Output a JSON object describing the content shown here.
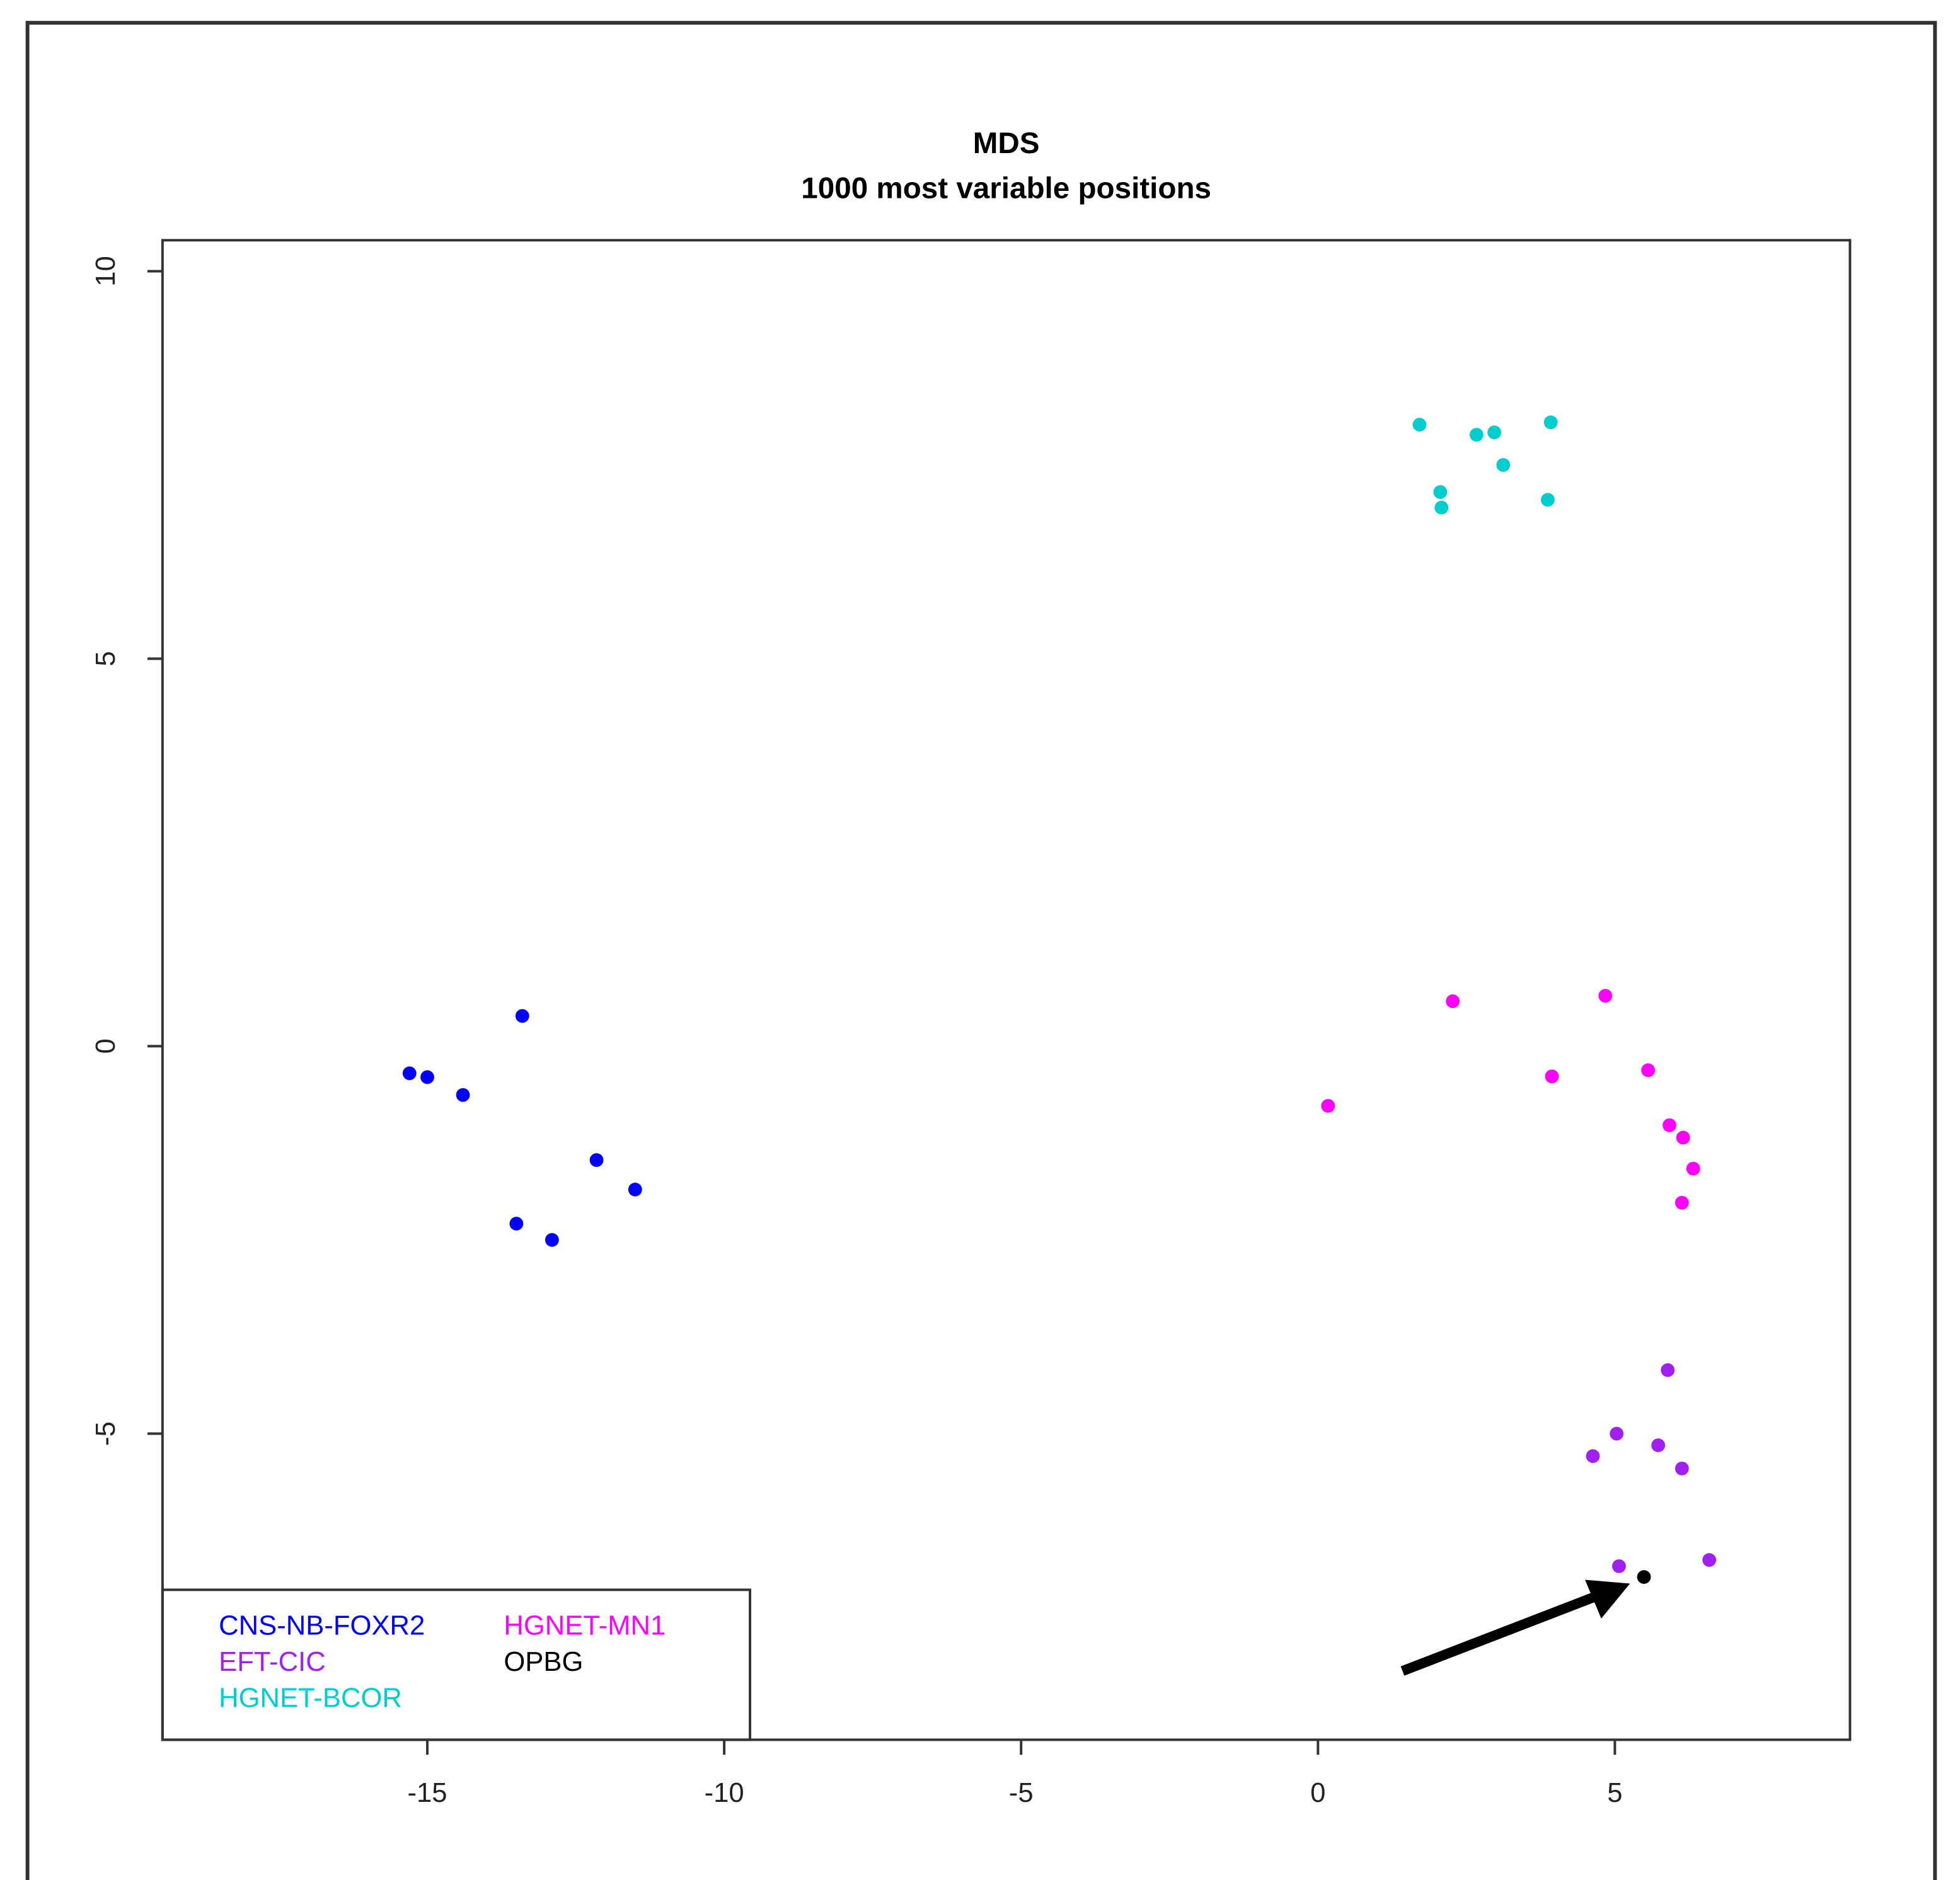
{
  "chart_data": {
    "type": "scatter",
    "title": "MDS",
    "subtitle": "1000 most variable positions",
    "xlim": [
      -19.46,
      8.96
    ],
    "ylim": [
      -8.95,
      10.4
    ],
    "xticks": [
      -15,
      -10,
      -5,
      0,
      5
    ],
    "yticks": [
      -5,
      0,
      5,
      10
    ],
    "legend": "bottomleft",
    "series": [
      {
        "name": "CNS-NB-FOXR2",
        "color": "#0000ff",
        "x": [
          -15.3,
          -15.0,
          -14.4,
          -13.4,
          -12.15,
          -11.5,
          -13.5,
          -12.9
        ],
        "values": [
          -0.35,
          -0.4,
          -0.63,
          0.39,
          -1.47,
          -1.85,
          -2.29,
          -2.5
        ]
      },
      {
        "name": "EFT-CIC",
        "color": "#a020f0",
        "x": [
          5.89,
          5.03,
          4.63,
          5.73,
          6.13,
          5.07,
          6.59
        ],
        "values": [
          -4.18,
          -5.0,
          -5.29,
          -5.15,
          -5.45,
          -6.71,
          -6.63
        ]
      },
      {
        "name": "HGNET-BCOR",
        "color": "#00cdcd",
        "x": [
          1.71,
          2.06,
          2.08,
          2.67,
          2.97,
          3.12,
          3.92,
          3.87
        ],
        "values": [
          8.02,
          7.15,
          6.95,
          7.89,
          7.92,
          7.5,
          8.05,
          7.05
        ]
      },
      {
        "name": "HGNET-MN1",
        "color": "#ff00ff",
        "x": [
          0.17,
          2.27,
          4.84,
          3.94,
          5.56,
          5.92,
          6.15,
          6.32,
          6.13
        ],
        "values": [
          -0.77,
          0.58,
          0.65,
          -0.39,
          -0.31,
          -1.02,
          -1.18,
          -1.58,
          -2.02
        ]
      },
      {
        "name": "OPBG",
        "color": "#000000",
        "x": [
          5.49
        ],
        "values": [
          -6.85
        ]
      }
    ]
  }
}
